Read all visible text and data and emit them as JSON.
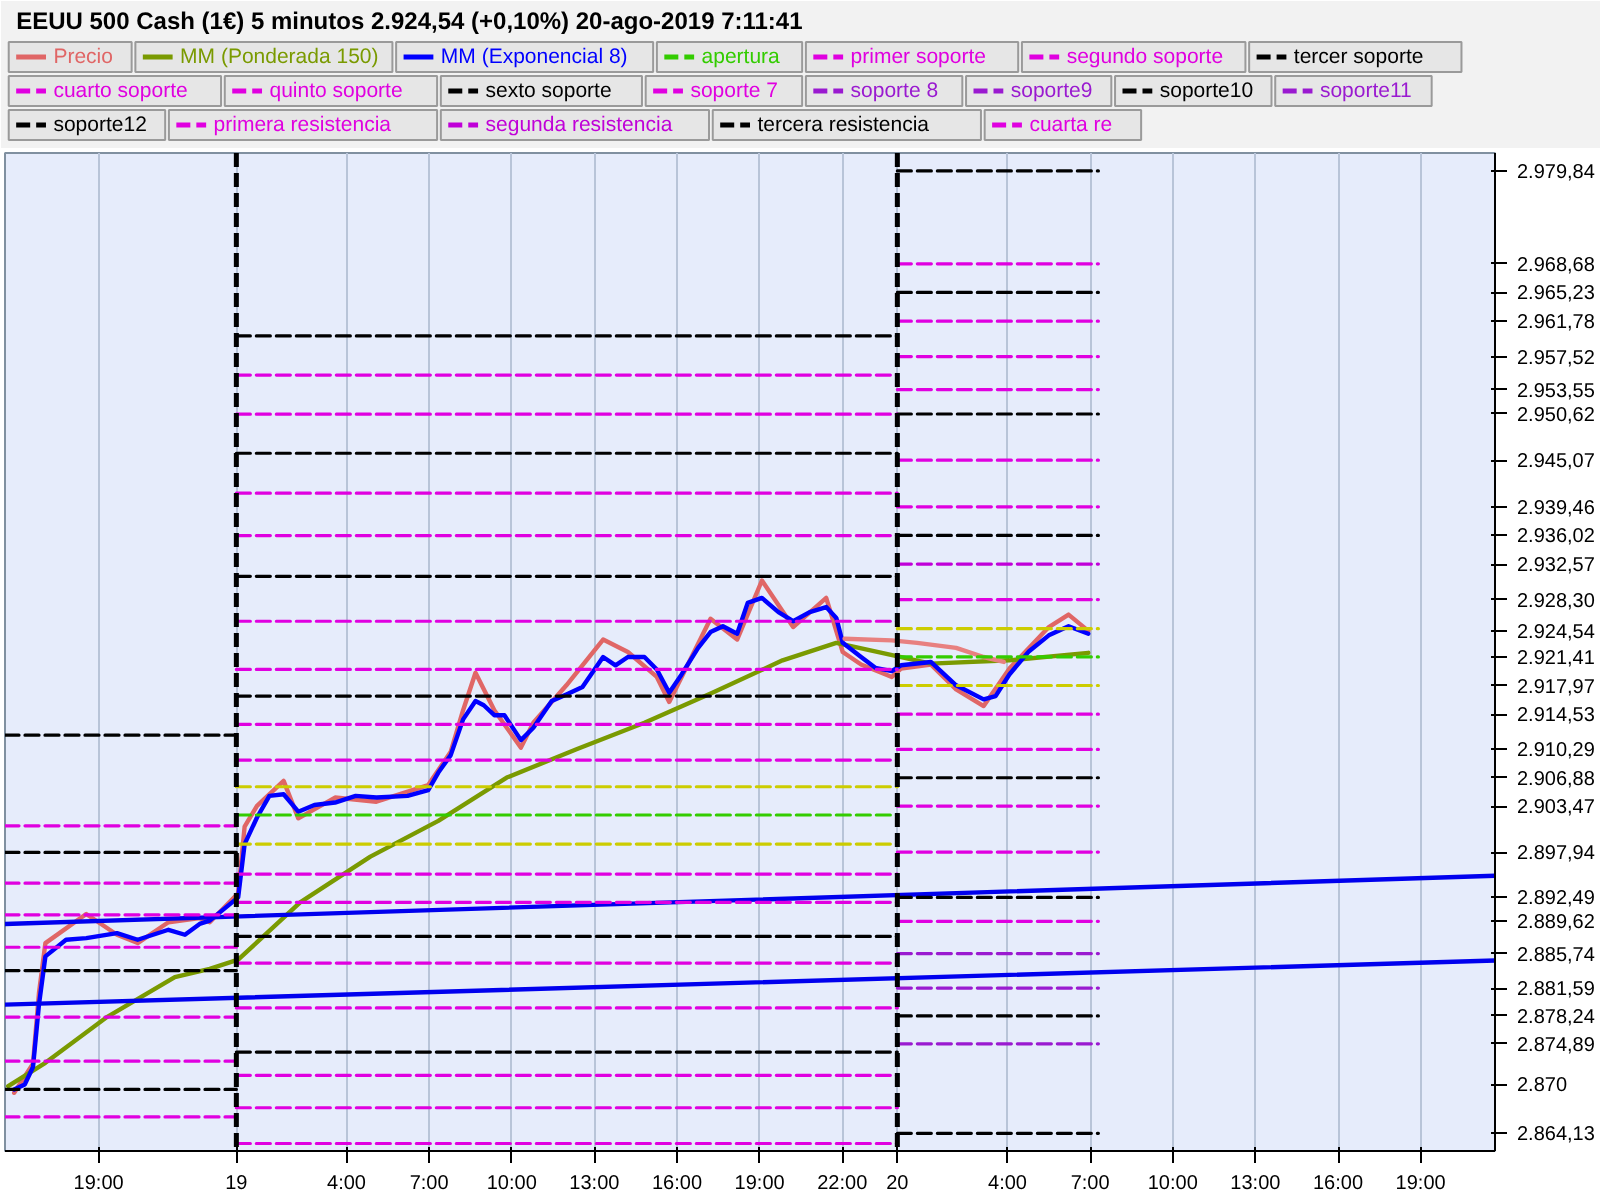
{
  "chart_data": {
    "type": "line",
    "title": "EEUU 500 Cash (1€)   5 minutos   2.924,54 (+0,10%)   20-ago-2019 7:11:41",
    "legend": "top",
    "grid": "x",
    "xlim": [
      "2019-08-18T15:36",
      "2019-08-20T21:42"
    ],
    "ylim": [
      2862,
      2982
    ],
    "xticks": [
      {
        "value": "2019-08-18T19:00",
        "label": "19:00"
      },
      {
        "value": "2019-08-19",
        "label": "19"
      },
      {
        "value": "2019-08-19T04:00",
        "label": "4:00"
      },
      {
        "value": "2019-08-19T07:00",
        "label": "7:00"
      },
      {
        "value": "2019-08-19T10:00",
        "label": "10:00"
      },
      {
        "value": "2019-08-19T13:00",
        "label": "13:00"
      },
      {
        "value": "2019-08-19T16:00",
        "label": "16:00"
      },
      {
        "value": "2019-08-19T19:00",
        "label": "19:00"
      },
      {
        "value": "2019-08-19T22:00",
        "label": "22:00"
      },
      {
        "value": "2019-08-20",
        "label": "20"
      },
      {
        "value": "2019-08-20T04:00",
        "label": "4:00"
      },
      {
        "value": "2019-08-20T07:00",
        "label": "7:00"
      },
      {
        "value": "2019-08-20T10:00",
        "label": "10:00"
      },
      {
        "value": "2019-08-20T13:00",
        "label": "13:00"
      },
      {
        "value": "2019-08-20T16:00",
        "label": "16:00"
      },
      {
        "value": "2019-08-20T19:00",
        "label": "19:00"
      }
    ],
    "yticks": [
      {
        "value": 2979.84,
        "label": "2.979,84"
      },
      {
        "value": 2968.68,
        "label": "2.968,68"
      },
      {
        "value": 2965.23,
        "label": "2.965,23"
      },
      {
        "value": 2961.78,
        "label": "2.961,78"
      },
      {
        "value": 2957.52,
        "label": "2.957,52"
      },
      {
        "value": 2953.55,
        "label": "2.953,55"
      },
      {
        "value": 2950.62,
        "label": "2.950,62"
      },
      {
        "value": 2945.07,
        "label": "2.945,07"
      },
      {
        "value": 2939.46,
        "label": "2.939,46"
      },
      {
        "value": 2936.02,
        "label": "2.936,02"
      },
      {
        "value": 2932.57,
        "label": "2.932,57"
      },
      {
        "value": 2928.3,
        "label": "2.928,30"
      },
      {
        "value": 2924.54,
        "label": "2.924,54"
      },
      {
        "value": 2921.41,
        "label": "2.921,41"
      },
      {
        "value": 2917.97,
        "label": "2.917,97"
      },
      {
        "value": 2914.53,
        "label": "2.914,53"
      },
      {
        "value": 2910.29,
        "label": "2.910,29"
      },
      {
        "value": 2906.88,
        "label": "2.906,88"
      },
      {
        "value": 2903.47,
        "label": "2.903,47"
      },
      {
        "value": 2897.94,
        "label": "2.897,94"
      },
      {
        "value": 2892.49,
        "label": "2.892,49"
      },
      {
        "value": 2889.62,
        "label": "2.889,62"
      },
      {
        "value": 2885.74,
        "label": "2.885,74"
      },
      {
        "value": 2881.59,
        "label": "2.881,59"
      },
      {
        "value": 2878.24,
        "label": "2.878,24"
      },
      {
        "value": 2874.89,
        "label": "2.874,89"
      },
      {
        "value": 2870,
        "label": "2.870"
      },
      {
        "value": 2864.13,
        "label": "2.864,13"
      }
    ],
    "ref_lines": [
      {
        "axis": "x",
        "value": "2019-08-19",
        "color": "#000000",
        "line_style": "dashed"
      },
      {
        "axis": "x",
        "value": "2019-08-20",
        "color": "#000000",
        "line_style": "dashed"
      }
    ],
    "series": [
      {
        "name": "Precio",
        "color": "#e06666",
        "x": [
          "2019-08-18T15:56",
          "2019-08-18T16:37",
          "2019-08-18T16:50",
          "2019-08-18T17:04",
          "2019-08-18T18:33",
          "2019-08-18T19:40",
          "2019-08-18T20:25",
          "2019-08-18T21:32",
          "2019-08-18T22:40",
          "2019-08-18T23:02",
          "2019-08-19T00:04",
          "2019-08-19T00:18",
          "2019-08-19T00:45",
          "2019-08-19T01:43",
          "2019-08-19T02:15",
          "2019-08-19T03:35",
          "2019-08-19T05:05",
          "2019-08-19T06:58",
          "2019-08-19T07:47",
          "2019-08-19T08:14",
          "2019-08-19T08:41",
          "2019-08-19T09:22",
          "2019-08-19T10:20",
          "2019-08-19T10:47",
          "2019-08-19T11:59",
          "2019-08-19T13:19",
          "2019-08-19T14:13",
          "2019-08-19T15:16",
          "2019-08-19T15:43",
          "2019-08-19T17:13",
          "2019-08-19T18:11",
          "2019-08-19T19:05",
          "2019-08-19T20:13",
          "2019-08-19T21:25",
          "2019-08-19T22:01",
          "2019-08-19T22:41",
          "2019-08-19T23:48",
          "2019-08-20T00:08",
          "2019-08-20T01:13",
          "2019-08-20T02:08",
          "2019-08-20T03:08",
          "2019-08-20T04:04",
          "2019-08-20T05:30",
          "2019-08-20T06:13",
          "2019-08-20T06:56"
        ],
        "values": [
          2869.0,
          2872.5,
          2881.0,
          2887.0,
          2890.5,
          2888.0,
          2887.0,
          2889.5,
          2890.0,
          2889.5,
          2893.0,
          2901.0,
          2903.5,
          2906.5,
          2902.0,
          2904.5,
          2904.0,
          2906.0,
          2910.0,
          2915.0,
          2919.5,
          2915.0,
          2910.5,
          2913.5,
          2918.0,
          2923.5,
          2922.0,
          2919.0,
          2916.0,
          2926.0,
          2923.5,
          2930.6,
          2925.0,
          2928.5,
          2922.0,
          2920.5,
          2919.0,
          2920.0,
          2920.5,
          2917.5,
          2915.5,
          2920.0,
          2925.0,
          2926.5,
          2924.54
        ]
      },
      {
        "name": "MM (Ponderada 150)",
        "color": "#7a9a01",
        "x": [
          "2019-08-18T15:43",
          "2019-08-18T17:04",
          "2019-08-18T19:18",
          "2019-08-18T21:46",
          "2019-08-18T23:02",
          "2019-08-19T00:04",
          "2019-08-19T02:19",
          "2019-08-19T04:52",
          "2019-08-19T07:20",
          "2019-08-19T09:49",
          "2019-08-19T12:21",
          "2019-08-19T14:49",
          "2019-08-19T17:17",
          "2019-08-19T19:50",
          "2019-08-19T21:47",
          "2019-08-20T01:13",
          "2019-08-20T04:04",
          "2019-08-20T06:56"
        ],
        "values": [
          2869.8,
          2872.6,
          2878.1,
          2882.9,
          2883.9,
          2885.0,
          2891.9,
          2897.4,
          2901.7,
          2906.9,
          2910.3,
          2913.5,
          2917.1,
          2921.0,
          2923.1,
          2920.6,
          2921.0,
          2921.9
        ]
      },
      {
        "name": "MM (Exponencial 8)",
        "color": "#0000ff",
        "x": [
          "2019-08-18T15:56",
          "2019-08-18T16:19",
          "2019-08-18T16:37",
          "2019-08-18T16:50",
          "2019-08-18T17:04",
          "2019-08-18T17:49",
          "2019-08-18T18:33",
          "2019-08-18T19:40",
          "2019-08-18T20:25",
          "2019-08-18T21:32",
          "2019-08-18T22:08",
          "2019-08-18T22:40",
          "2019-08-18T23:02",
          "2019-08-19T00:04",
          "2019-08-19T00:18",
          "2019-08-19T00:45",
          "2019-08-19T01:12",
          "2019-08-19T01:43",
          "2019-08-19T02:15",
          "2019-08-19T02:50",
          "2019-08-19T03:35",
          "2019-08-19T04:20",
          "2019-08-19T05:05",
          "2019-08-19T06:13",
          "2019-08-19T06:58",
          "2019-08-19T07:20",
          "2019-08-19T07:47",
          "2019-08-19T08:14",
          "2019-08-19T08:41",
          "2019-08-19T08:59",
          "2019-08-19T09:22",
          "2019-08-19T09:44",
          "2019-08-19T10:20",
          "2019-08-19T10:47",
          "2019-08-19T11:27",
          "2019-08-19T11:59",
          "2019-08-19T12:34",
          "2019-08-19T13:19",
          "2019-08-19T13:46",
          "2019-08-19T14:13",
          "2019-08-19T14:49",
          "2019-08-19T15:16",
          "2019-08-19T15:43",
          "2019-08-19T16:10",
          "2019-08-19T16:46",
          "2019-08-19T17:13",
          "2019-08-19T17:40",
          "2019-08-19T18:11",
          "2019-08-19T18:34",
          "2019-08-19T19:05",
          "2019-08-19T19:41",
          "2019-08-19T20:13",
          "2019-08-19T20:49",
          "2019-08-19T21:25",
          "2019-08-19T21:47",
          "2019-08-19T22:01",
          "2019-08-19T22:41",
          "2019-08-19T23:12",
          "2019-08-19T23:48",
          "2019-08-20T00:08",
          "2019-08-20T01:13",
          "2019-08-20T02:08",
          "2019-08-20T03:08",
          "2019-08-20T03:34",
          "2019-08-20T04:04",
          "2019-08-20T04:47",
          "2019-08-20T05:30",
          "2019-08-20T06:13",
          "2019-08-20T06:56"
        ],
        "values": [
          2869.4,
          2870.0,
          2872.1,
          2879.6,
          2885.4,
          2887.4,
          2887.6,
          2888.2,
          2887.4,
          2888.6,
          2888.0,
          2889.3,
          2889.7,
          2892.5,
          2898.9,
          2902.1,
          2904.7,
          2904.9,
          2902.8,
          2903.6,
          2903.9,
          2904.7,
          2904.5,
          2904.7,
          2905.4,
          2907.5,
          2909.6,
          2913.9,
          2916.1,
          2915.6,
          2914.4,
          2914.4,
          2911.4,
          2912.9,
          2916.1,
          2916.9,
          2917.8,
          2921.4,
          2920.4,
          2921.4,
          2921.4,
          2919.9,
          2917.1,
          2919.3,
          2922.5,
          2924.4,
          2925.1,
          2924.2,
          2927.9,
          2928.5,
          2926.8,
          2925.7,
          2926.8,
          2927.4,
          2926.1,
          2923.1,
          2921.4,
          2920.1,
          2919.7,
          2920.4,
          2920.8,
          2918.0,
          2916.3,
          2916.7,
          2919.3,
          2922.1,
          2924.0,
          2925.1,
          2924.2
        ]
      },
      {
        "name": "apertura",
        "color": "#33cc00",
        "line_style": "dashed",
        "x": [
          "2019-08-20",
          "2019-08-20T07:18"
        ],
        "values": [
          2921.41,
          2921.41
        ]
      },
      {
        "name": "primer soporte",
        "color": "#e000e0",
        "line_style": "dashed",
        "x": [
          "2019-08-20",
          "2019-08-20T07:18"
        ],
        "values": [
          2914.53,
          2914.53
        ]
      },
      {
        "name": "segundo soporte",
        "color": "#e000e0",
        "line_style": "dashed",
        "x": [
          "2019-08-20",
          "2019-08-20T07:18"
        ],
        "values": [
          2910.29,
          2910.29
        ]
      },
      {
        "name": "tercer soporte",
        "color": "#000000",
        "line_style": "dashed",
        "x": [
          "2019-08-20",
          "2019-08-20T07:18"
        ],
        "values": [
          2906.88,
          2906.88
        ]
      },
      {
        "name": "cuarto soporte",
        "color": "#e000e0",
        "line_style": "dashed",
        "x": [
          "2019-08-20",
          "2019-08-20T07:18"
        ],
        "values": [
          2903.47,
          2903.47
        ]
      },
      {
        "name": "quinto soporte",
        "color": "#e000e0",
        "line_style": "dashed",
        "x": [
          "2019-08-20",
          "2019-08-20T07:18"
        ],
        "values": [
          2897.94,
          2897.94
        ]
      },
      {
        "name": "sexto soporte",
        "color": "#000000",
        "line_style": "dashed",
        "x": [
          "2019-08-20",
          "2019-08-20T07:18"
        ],
        "values": [
          2892.49,
          2892.49
        ]
      },
      {
        "name": "soporte 7",
        "color": "#e000e0",
        "line_style": "dashed",
        "x": [
          "2019-08-20",
          "2019-08-20T07:18"
        ],
        "values": [
          2889.62,
          2889.62
        ]
      },
      {
        "name": "soporte 8",
        "color": "#9a1ad0",
        "line_style": "dashed",
        "x": [
          "2019-08-20",
          "2019-08-20T07:18"
        ],
        "values": [
          2885.74,
          2885.74
        ]
      },
      {
        "name": "soporte9",
        "color": "#9a1ad0",
        "line_style": "dashed",
        "x": [
          "2019-08-20",
          "2019-08-20T07:18"
        ],
        "values": [
          2881.59,
          2881.59
        ]
      },
      {
        "name": "soporte10",
        "color": "#000000",
        "line_style": "dashed",
        "x": [
          "2019-08-20",
          "2019-08-20T07:18"
        ],
        "values": [
          2878.24,
          2878.24
        ]
      },
      {
        "name": "soporte11",
        "color": "#9a1ad0",
        "line_style": "dashed",
        "x": [
          "2019-08-20",
          "2019-08-20T07:18"
        ],
        "values": [
          2874.89,
          2874.89
        ]
      },
      {
        "name": "soporte12",
        "color": "#000000",
        "line_style": "dashed",
        "x": [
          "2019-08-20",
          "2019-08-20T07:18"
        ],
        "values": [
          2864.13,
          2864.13
        ]
      },
      {
        "name": "primera resistencia",
        "color": "#e000e0",
        "line_style": "dashed",
        "x": [
          "2019-08-20",
          "2019-08-20T07:18"
        ],
        "values": [
          2928.3,
          2928.3
        ]
      },
      {
        "name": "segunda resistencia",
        "color": "#c000d8",
        "line_style": "dashed",
        "x": [
          "2019-08-20",
          "2019-08-20T07:18"
        ],
        "values": [
          2932.57,
          2932.57
        ]
      },
      {
        "name": "tercera resistencia",
        "color": "#000000",
        "line_style": "dashed",
        "x": [
          "2019-08-20",
          "2019-08-20T07:18"
        ],
        "values": [
          2936.02,
          2936.02
        ]
      },
      {
        "name": "cuarta re",
        "color": "#e000e0",
        "line_style": "dashed",
        "x": [
          "2019-08-20",
          "2019-08-20T07:18"
        ],
        "values": [
          2939.46,
          2939.46
        ]
      },
      {
        "color": "#e000e0",
        "line_style": "dashed",
        "x": [
          "2019-08-20",
          "2019-08-20T07:18"
        ],
        "values": [
          2945.07,
          2945.07
        ]
      },
      {
        "color": "#000000",
        "line_style": "dashed",
        "x": [
          "2019-08-20",
          "2019-08-20T07:18"
        ],
        "values": [
          2950.62,
          2950.62
        ]
      },
      {
        "color": "#e000e0",
        "line_style": "dashed",
        "x": [
          "2019-08-20",
          "2019-08-20T07:18"
        ],
        "values": [
          2953.55,
          2953.55
        ]
      },
      {
        "color": "#e000e0",
        "line_style": "dashed",
        "x": [
          "2019-08-20",
          "2019-08-20T07:18"
        ],
        "values": [
          2957.52,
          2957.52
        ]
      },
      {
        "color": "#e000e0",
        "line_style": "dashed",
        "x": [
          "2019-08-20",
          "2019-08-20T07:18"
        ],
        "values": [
          2961.78,
          2961.78
        ]
      },
      {
        "color": "#000000",
        "line_style": "dashed",
        "x": [
          "2019-08-20",
          "2019-08-20T07:18"
        ],
        "values": [
          2965.23,
          2965.23
        ]
      },
      {
        "color": "#e000e0",
        "line_style": "dashed",
        "x": [
          "2019-08-20",
          "2019-08-20T07:18"
        ],
        "values": [
          2968.68,
          2968.68
        ]
      },
      {
        "color": "#000000",
        "line_style": "dashed",
        "x": [
          "2019-08-20",
          "2019-08-20T07:18"
        ],
        "values": [
          2979.84,
          2979.84
        ]
      },
      {
        "color": "#cccc00",
        "line_style": "dashed",
        "x": [
          "2019-08-20",
          "2019-08-20T07:18"
        ],
        "values": [
          2917.97,
          2917.97
        ]
      },
      {
        "color": "#cccc00",
        "line_style": "dashed",
        "x": [
          "2019-08-20",
          "2019-08-20T07:18"
        ],
        "values": [
          2924.8,
          2924.8
        ]
      },
      {
        "color": "#000000",
        "line_style": "dashed",
        "x": [
          "2019-08-19",
          "2019-08-20"
        ],
        "values": [
          2960.0,
          2960.0
        ]
      },
      {
        "color": "#000000",
        "line_style": "dashed",
        "x": [
          "2019-08-19",
          "2019-08-20"
        ],
        "values": [
          2945.9,
          2945.9
        ]
      },
      {
        "color": "#000000",
        "line_style": "dashed",
        "x": [
          "2019-08-19",
          "2019-08-20"
        ],
        "values": [
          2931.1,
          2931.1
        ]
      },
      {
        "color": "#000000",
        "line_style": "dashed",
        "x": [
          "2019-08-19",
          "2019-08-20"
        ],
        "values": [
          2916.7,
          2916.7
        ]
      },
      {
        "color": "#000000",
        "line_style": "dashed",
        "x": [
          "2019-08-19",
          "2019-08-20"
        ],
        "values": [
          2887.8,
          2887.8
        ]
      },
      {
        "color": "#000000",
        "line_style": "dashed",
        "x": [
          "2019-08-19",
          "2019-08-20"
        ],
        "values": [
          2873.9,
          2873.9
        ]
      },
      {
        "color": "#33cc00",
        "line_style": "dashed",
        "x": [
          "2019-08-19",
          "2019-08-20"
        ],
        "values": [
          2902.4,
          2902.4
        ]
      },
      {
        "color": "#cccc00",
        "line_style": "dashed",
        "x": [
          "2019-08-19",
          "2019-08-20"
        ],
        "values": [
          2905.8,
          2905.8
        ]
      },
      {
        "color": "#cccc00",
        "line_style": "dashed",
        "x": [
          "2019-08-19",
          "2019-08-20"
        ],
        "values": [
          2898.9,
          2898.9
        ]
      },
      {
        "color": "#e000e0",
        "line_style": "dashed",
        "x": [
          "2019-08-19",
          "2019-08-20"
        ],
        "values": [
          2955.3,
          2955.3
        ]
      },
      {
        "color": "#e000e0",
        "line_style": "dashed",
        "x": [
          "2019-08-19",
          "2019-08-20"
        ],
        "values": [
          2950.6,
          2950.6
        ]
      },
      {
        "color": "#e000e0",
        "line_style": "dashed",
        "x": [
          "2019-08-19",
          "2019-08-20"
        ],
        "values": [
          2941.1,
          2941.1
        ]
      },
      {
        "color": "#e000e0",
        "line_style": "dashed",
        "x": [
          "2019-08-19",
          "2019-08-20"
        ],
        "values": [
          2936.0,
          2936.0
        ]
      },
      {
        "color": "#e000e0",
        "line_style": "dashed",
        "x": [
          "2019-08-19",
          "2019-08-20"
        ],
        "values": [
          2925.7,
          2925.7
        ]
      },
      {
        "color": "#e000e0",
        "line_style": "dashed",
        "x": [
          "2019-08-19",
          "2019-08-20"
        ],
        "values": [
          2919.9,
          2919.9
        ]
      },
      {
        "color": "#e000e0",
        "line_style": "dashed",
        "x": [
          "2019-08-19",
          "2019-08-20"
        ],
        "values": [
          2913.3,
          2913.3
        ]
      },
      {
        "color": "#e000e0",
        "line_style": "dashed",
        "x": [
          "2019-08-19",
          "2019-08-20"
        ],
        "values": [
          2909.0,
          2909.0
        ]
      },
      {
        "color": "#e000e0",
        "line_style": "dashed",
        "x": [
          "2019-08-19",
          "2019-08-20"
        ],
        "values": [
          2895.3,
          2895.3
        ]
      },
      {
        "color": "#e000e0",
        "line_style": "dashed",
        "x": [
          "2019-08-19",
          "2019-08-20"
        ],
        "values": [
          2891.9,
          2891.9
        ]
      },
      {
        "color": "#e000e0",
        "line_style": "dashed",
        "x": [
          "2019-08-19",
          "2019-08-20"
        ],
        "values": [
          2884.6,
          2884.6
        ]
      },
      {
        "color": "#e000e0",
        "line_style": "dashed",
        "x": [
          "2019-08-19",
          "2019-08-20"
        ],
        "values": [
          2879.2,
          2879.2
        ]
      },
      {
        "color": "#e000e0",
        "line_style": "dashed",
        "x": [
          "2019-08-19",
          "2019-08-20"
        ],
        "values": [
          2871.1,
          2871.1
        ]
      },
      {
        "color": "#e000e0",
        "line_style": "dashed",
        "x": [
          "2019-08-19",
          "2019-08-20"
        ],
        "values": [
          2867.2,
          2867.2
        ]
      },
      {
        "color": "#e000e0",
        "line_style": "dashed",
        "x": [
          "2019-08-19",
          "2019-08-20"
        ],
        "values": [
          2862.9,
          2862.9
        ]
      },
      {
        "color": "#000000",
        "line_style": "dashed",
        "x": [
          "2019-08-18T15:36",
          "2019-08-19"
        ],
        "values": [
          2912.0,
          2912.0
        ]
      },
      {
        "color": "#000000",
        "line_style": "dashed",
        "x": [
          "2019-08-18T15:36",
          "2019-08-19"
        ],
        "values": [
          2897.9,
          2897.9
        ]
      },
      {
        "color": "#000000",
        "line_style": "dashed",
        "x": [
          "2019-08-18T15:36",
          "2019-08-19"
        ],
        "values": [
          2883.7,
          2883.7
        ]
      },
      {
        "color": "#000000",
        "line_style": "dashed",
        "x": [
          "2019-08-18T15:36",
          "2019-08-19"
        ],
        "values": [
          2869.4,
          2869.4
        ]
      },
      {
        "color": "#e000e0",
        "line_style": "dashed",
        "x": [
          "2019-08-18T15:36",
          "2019-08-19"
        ],
        "values": [
          2901.1,
          2901.1
        ]
      },
      {
        "color": "#e000e0",
        "line_style": "dashed",
        "x": [
          "2019-08-18T15:36",
          "2019-08-19"
        ],
        "values": [
          2894.2,
          2894.2
        ]
      },
      {
        "color": "#e000e0",
        "line_style": "dashed",
        "x": [
          "2019-08-18T15:36",
          "2019-08-19"
        ],
        "values": [
          2890.4,
          2890.4
        ]
      },
      {
        "color": "#e000e0",
        "line_style": "dashed",
        "x": [
          "2019-08-18T15:36",
          "2019-08-19"
        ],
        "values": [
          2886.5,
          2886.5
        ]
      },
      {
        "color": "#e000e0",
        "line_style": "dashed",
        "x": [
          "2019-08-18T15:36",
          "2019-08-19"
        ],
        "values": [
          2878.1,
          2878.1
        ]
      },
      {
        "color": "#e000e0",
        "line_style": "dashed",
        "x": [
          "2019-08-18T15:36",
          "2019-08-19"
        ],
        "values": [
          2872.8,
          2872.8
        ]
      },
      {
        "color": "#e000e0",
        "line_style": "dashed",
        "x": [
          "2019-08-18T15:36",
          "2019-08-19"
        ],
        "values": [
          2866.1,
          2866.1
        ]
      },
      {
        "color": "#e88080",
        "x": [
          "2019-08-19T22:05",
          "2019-08-19T23:48",
          "2019-08-20T00:43",
          "2019-08-20T02:08",
          "2019-08-20T03:08",
          "2019-08-20T03:52"
        ],
        "values": [
          2923.6,
          2923.4,
          2923.1,
          2922.5,
          2921.4,
          2920.8
        ]
      },
      {
        "color": "#0000ee",
        "x": [
          "2019-08-18T15:36",
          "2019-08-20T21:42"
        ],
        "values": [
          2889.3,
          2895.1
        ]
      },
      {
        "color": "#0000ee",
        "x": [
          "2019-08-18T15:36",
          "2019-08-20T21:42"
        ],
        "values": [
          2879.6,
          2884.9
        ]
      }
    ]
  }
}
